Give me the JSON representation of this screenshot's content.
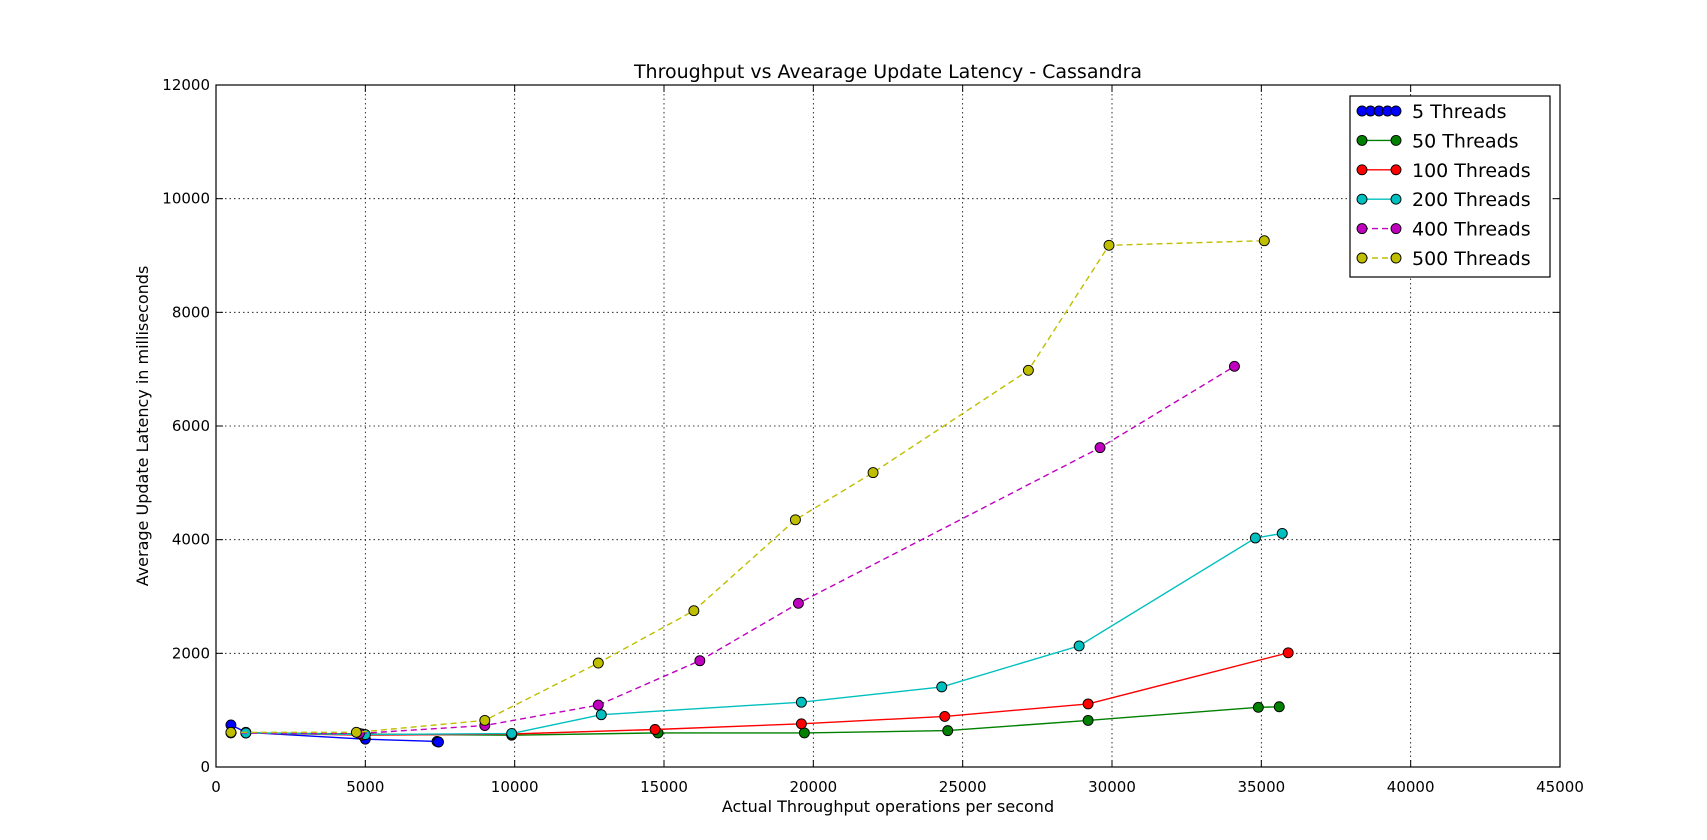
{
  "chart_data": {
    "type": "line",
    "title": "Throughput vs Avearage Update Latency - Cassandra",
    "xlabel": "Actual Throughput operations per second",
    "ylabel": "Average Update Latency in milliseconds",
    "xlim": [
      0,
      45000
    ],
    "ylim": [
      0,
      12000
    ],
    "x_ticks": [
      0,
      5000,
      10000,
      15000,
      20000,
      25000,
      30000,
      35000,
      40000,
      45000
    ],
    "y_ticks": [
      0,
      2000,
      4000,
      6000,
      8000,
      10000,
      12000
    ],
    "grid": true,
    "legend_position": "top-right",
    "series": [
      {
        "name": "5 Threads",
        "color": "#0000ff",
        "line_style": "solid",
        "points": [
          [
            500,
            740
          ],
          [
            1000,
            610
          ],
          [
            5000,
            490
          ],
          [
            7400,
            450
          ],
          [
            7450,
            440
          ]
        ]
      },
      {
        "name": "50 Threads",
        "color": "#008000",
        "line_style": "solid",
        "points": [
          [
            1000,
            600
          ],
          [
            4900,
            580
          ],
          [
            9900,
            560
          ],
          [
            14800,
            600
          ],
          [
            19700,
            600
          ],
          [
            24500,
            640
          ],
          [
            29200,
            820
          ],
          [
            34900,
            1050
          ],
          [
            35600,
            1060
          ]
        ]
      },
      {
        "name": "100 Threads",
        "color": "#ff0000",
        "line_style": "solid",
        "points": [
          [
            1000,
            600
          ],
          [
            4900,
            560
          ],
          [
            9900,
            580
          ],
          [
            14700,
            660
          ],
          [
            19600,
            760
          ],
          [
            24400,
            890
          ],
          [
            29200,
            1110
          ],
          [
            35900,
            2010
          ]
        ]
      },
      {
        "name": "200 Threads",
        "color": "#00bfbf",
        "line_style": "solid",
        "points": [
          [
            1000,
            600
          ],
          [
            5000,
            570
          ],
          [
            9900,
            590
          ],
          [
            12900,
            920
          ],
          [
            19600,
            1140
          ],
          [
            24300,
            1410
          ],
          [
            28900,
            2130
          ],
          [
            34800,
            4030
          ],
          [
            35700,
            4110
          ]
        ]
      },
      {
        "name": "400 Threads",
        "color": "#bf00bf",
        "line_style": "dashed",
        "points": [
          [
            500,
            600
          ],
          [
            4800,
            590
          ],
          [
            9000,
            730
          ],
          [
            12800,
            1090
          ],
          [
            16200,
            1870
          ],
          [
            19500,
            2880
          ],
          [
            29600,
            5620
          ],
          [
            34100,
            7050
          ]
        ]
      },
      {
        "name": "500 Threads",
        "color": "#bfbf00",
        "line_style": "dashed",
        "points": [
          [
            500,
            610
          ],
          [
            4700,
            610
          ],
          [
            9000,
            820
          ],
          [
            12800,
            1830
          ],
          [
            16000,
            2750
          ],
          [
            19400,
            4350
          ],
          [
            22000,
            5180
          ],
          [
            27200,
            6980
          ],
          [
            29900,
            9180
          ],
          [
            35100,
            9260
          ]
        ]
      }
    ]
  }
}
